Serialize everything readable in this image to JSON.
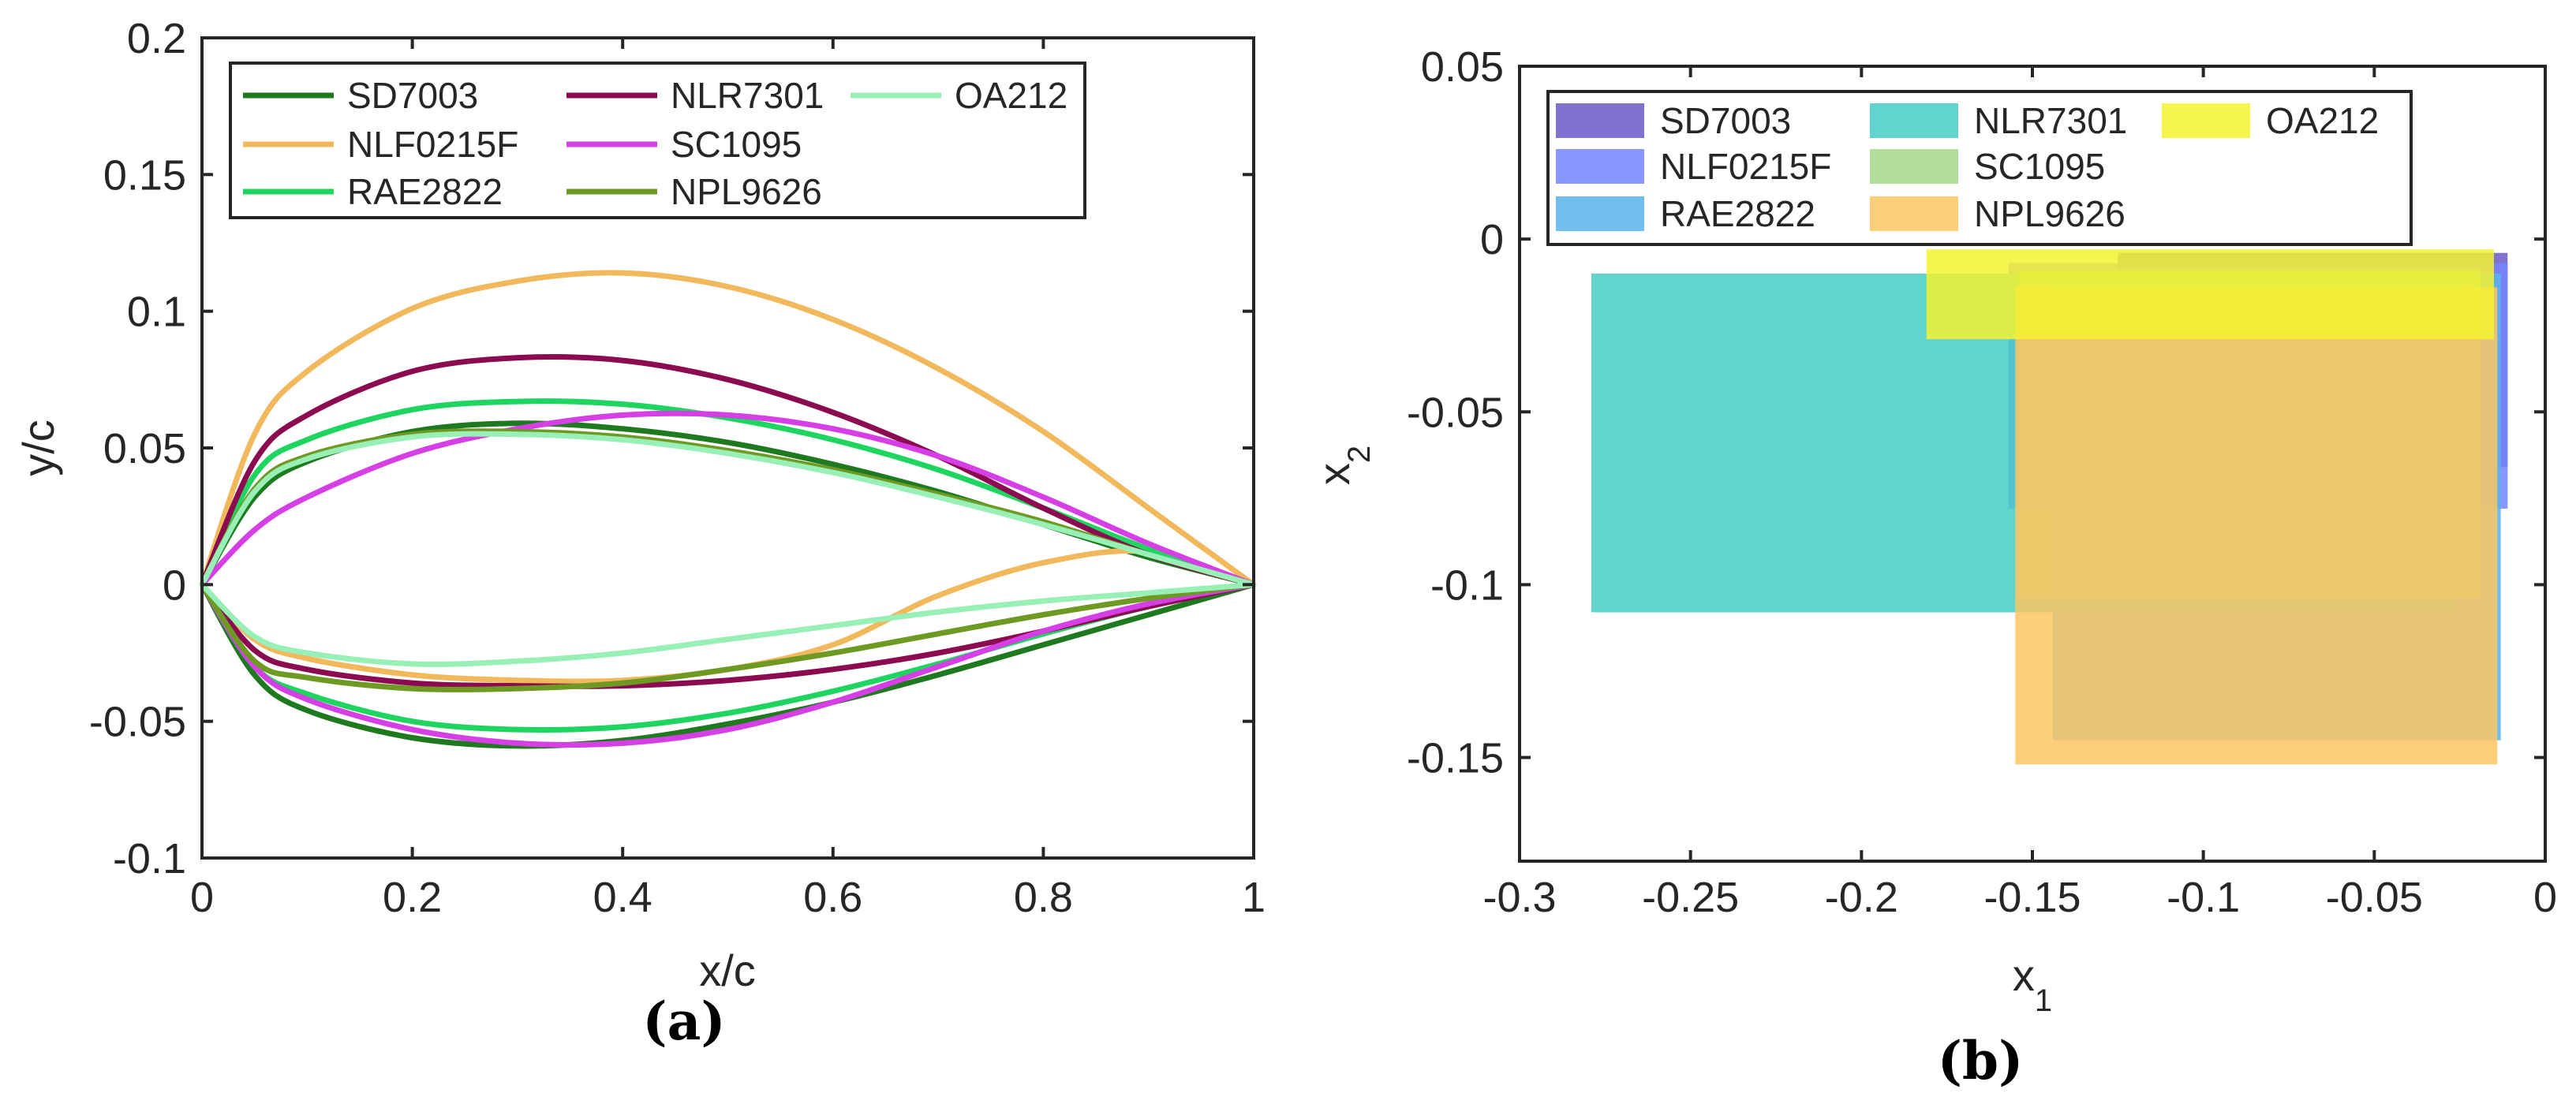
{
  "chart_data": [
    {
      "type": "line",
      "panel_label": "(a)",
      "xlabel": "x/c",
      "ylabel": "y/c",
      "xlim": [
        0,
        1
      ],
      "ylim": [
        -0.1,
        0.2
      ],
      "xticks": [
        0,
        0.2,
        0.4,
        0.6,
        0.8,
        1
      ],
      "yticks": [
        -0.1,
        -0.05,
        0,
        0.05,
        0.1,
        0.15,
        0.2
      ],
      "xtick_labels": [
        "0",
        "0.2",
        "0.4",
        "0.6",
        "0.8",
        "1"
      ],
      "ytick_labels": [
        "-0.1",
        "-0.05",
        "0",
        "0.05",
        "0.1",
        "0.15",
        "0.2"
      ],
      "grid": false,
      "legend_position": "top-left",
      "series": [
        {
          "name": "SD7003",
          "color": "#1f7a1f",
          "upper": [
            [
              0,
              0
            ],
            [
              0.05,
              0.032
            ],
            [
              0.1,
              0.045
            ],
            [
              0.2,
              0.056
            ],
            [
              0.3,
              0.059
            ],
            [
              0.4,
              0.057
            ],
            [
              0.5,
              0.052
            ],
            [
              0.6,
              0.044
            ],
            [
              0.7,
              0.034
            ],
            [
              0.8,
              0.022
            ],
            [
              0.9,
              0.01
            ],
            [
              1,
              0
            ]
          ],
          "lower": [
            [
              0,
              0
            ],
            [
              0.05,
              -0.033
            ],
            [
              0.1,
              -0.046
            ],
            [
              0.2,
              -0.056
            ],
            [
              0.3,
              -0.059
            ],
            [
              0.4,
              -0.057
            ],
            [
              0.5,
              -0.051
            ],
            [
              0.6,
              -0.043
            ],
            [
              0.7,
              -0.033
            ],
            [
              0.8,
              -0.022
            ],
            [
              0.9,
              -0.011
            ],
            [
              1,
              0
            ]
          ]
        },
        {
          "name": "NLF0215F",
          "color": "#f2b85c",
          "upper": [
            [
              0,
              0
            ],
            [
              0.05,
              0.055
            ],
            [
              0.1,
              0.078
            ],
            [
              0.2,
              0.101
            ],
            [
              0.3,
              0.111
            ],
            [
              0.4,
              0.114
            ],
            [
              0.5,
              0.109
            ],
            [
              0.6,
              0.097
            ],
            [
              0.7,
              0.079
            ],
            [
              0.8,
              0.056
            ],
            [
              0.9,
              0.028
            ],
            [
              1,
              0
            ]
          ],
          "lower": [
            [
              0,
              0
            ],
            [
              0.05,
              -0.02
            ],
            [
              0.1,
              -0.027
            ],
            [
              0.2,
              -0.033
            ],
            [
              0.3,
              -0.035
            ],
            [
              0.4,
              -0.035
            ],
            [
              0.5,
              -0.031
            ],
            [
              0.6,
              -0.022
            ],
            [
              0.7,
              -0.004
            ],
            [
              0.8,
              0.008
            ],
            [
              0.9,
              0.012
            ],
            [
              1,
              0
            ]
          ]
        },
        {
          "name": "RAE2822",
          "color": "#1ed65f",
          "upper": [
            [
              0,
              0
            ],
            [
              0.05,
              0.04
            ],
            [
              0.1,
              0.053
            ],
            [
              0.2,
              0.064
            ],
            [
              0.3,
              0.067
            ],
            [
              0.4,
              0.066
            ],
            [
              0.5,
              0.061
            ],
            [
              0.6,
              0.053
            ],
            [
              0.7,
              0.042
            ],
            [
              0.8,
              0.028
            ],
            [
              0.9,
              0.013
            ],
            [
              1,
              0
            ]
          ],
          "lower": [
            [
              0,
              0
            ],
            [
              0.05,
              -0.03
            ],
            [
              0.1,
              -0.04
            ],
            [
              0.2,
              -0.05
            ],
            [
              0.3,
              -0.053
            ],
            [
              0.4,
              -0.052
            ],
            [
              0.5,
              -0.047
            ],
            [
              0.6,
              -0.039
            ],
            [
              0.7,
              -0.029
            ],
            [
              0.8,
              -0.018
            ],
            [
              0.9,
              -0.008
            ],
            [
              1,
              0
            ]
          ]
        },
        {
          "name": "NLR7301",
          "color": "#8b0a50",
          "upper": [
            [
              0,
              0
            ],
            [
              0.05,
              0.045
            ],
            [
              0.1,
              0.062
            ],
            [
              0.2,
              0.078
            ],
            [
              0.3,
              0.083
            ],
            [
              0.4,
              0.082
            ],
            [
              0.5,
              0.075
            ],
            [
              0.6,
              0.063
            ],
            [
              0.7,
              0.047
            ],
            [
              0.8,
              0.028
            ],
            [
              0.9,
              0.011
            ],
            [
              1,
              0
            ]
          ],
          "lower": [
            [
              0,
              0
            ],
            [
              0.05,
              -0.024
            ],
            [
              0.1,
              -0.031
            ],
            [
              0.2,
              -0.036
            ],
            [
              0.3,
              -0.037
            ],
            [
              0.4,
              -0.037
            ],
            [
              0.5,
              -0.035
            ],
            [
              0.6,
              -0.031
            ],
            [
              0.7,
              -0.025
            ],
            [
              0.8,
              -0.017
            ],
            [
              0.9,
              -0.008
            ],
            [
              1,
              0
            ]
          ]
        },
        {
          "name": "SC1095",
          "color": "#d63ee6",
          "upper": [
            [
              0,
              0
            ],
            [
              0.05,
              0.02
            ],
            [
              0.1,
              0.032
            ],
            [
              0.2,
              0.048
            ],
            [
              0.3,
              0.057
            ],
            [
              0.4,
              0.062
            ],
            [
              0.5,
              0.062
            ],
            [
              0.6,
              0.057
            ],
            [
              0.7,
              0.047
            ],
            [
              0.8,
              0.032
            ],
            [
              0.9,
              0.015
            ],
            [
              1,
              0
            ]
          ],
          "lower": [
            [
              0,
              0
            ],
            [
              0.05,
              -0.03
            ],
            [
              0.1,
              -0.042
            ],
            [
              0.2,
              -0.053
            ],
            [
              0.3,
              -0.058
            ],
            [
              0.4,
              -0.058
            ],
            [
              0.5,
              -0.053
            ],
            [
              0.6,
              -0.043
            ],
            [
              0.7,
              -0.03
            ],
            [
              0.8,
              -0.017
            ],
            [
              0.9,
              -0.007
            ],
            [
              1,
              0
            ]
          ]
        },
        {
          "name": "NPL9626",
          "color": "#6e9a24",
          "upper": [
            [
              0,
              0
            ],
            [
              0.05,
              0.035
            ],
            [
              0.1,
              0.047
            ],
            [
              0.2,
              0.055
            ],
            [
              0.3,
              0.056
            ],
            [
              0.4,
              0.054
            ],
            [
              0.5,
              0.049
            ],
            [
              0.6,
              0.042
            ],
            [
              0.7,
              0.033
            ],
            [
              0.8,
              0.023
            ],
            [
              0.9,
              0.011
            ],
            [
              1,
              0
            ]
          ],
          "lower": [
            [
              0,
              0
            ],
            [
              0.05,
              -0.028
            ],
            [
              0.1,
              -0.034
            ],
            [
              0.2,
              -0.038
            ],
            [
              0.3,
              -0.038
            ],
            [
              0.4,
              -0.036
            ],
            [
              0.5,
              -0.031
            ],
            [
              0.6,
              -0.025
            ],
            [
              0.7,
              -0.018
            ],
            [
              0.8,
              -0.011
            ],
            [
              0.9,
              -0.005
            ],
            [
              1,
              0
            ]
          ]
        },
        {
          "name": "OA212",
          "color": "#98f0b6",
          "upper": [
            [
              0,
              0
            ],
            [
              0.05,
              0.034
            ],
            [
              0.1,
              0.046
            ],
            [
              0.2,
              0.054
            ],
            [
              0.3,
              0.055
            ],
            [
              0.4,
              0.053
            ],
            [
              0.5,
              0.048
            ],
            [
              0.6,
              0.041
            ],
            [
              0.7,
              0.032
            ],
            [
              0.8,
              0.022
            ],
            [
              0.9,
              0.011
            ],
            [
              1,
              0
            ]
          ],
          "lower": [
            [
              0,
              0
            ],
            [
              0.05,
              -0.019
            ],
            [
              0.1,
              -0.025
            ],
            [
              0.2,
              -0.029
            ],
            [
              0.3,
              -0.028
            ],
            [
              0.4,
              -0.025
            ],
            [
              0.5,
              -0.02
            ],
            [
              0.6,
              -0.015
            ],
            [
              0.7,
              -0.01
            ],
            [
              0.8,
              -0.006
            ],
            [
              0.9,
              -0.003
            ],
            [
              1,
              0
            ]
          ]
        }
      ]
    },
    {
      "type": "bar",
      "subtype": "range-rectangles",
      "panel_label": "(b)",
      "xlabel_main": "x",
      "xlabel_sub": "1",
      "ylabel_main": "x",
      "ylabel_sub": "2",
      "xlim": [
        -0.3,
        0
      ],
      "ylim": [
        -0.18,
        0.05
      ],
      "xticks": [
        -0.3,
        -0.25,
        -0.2,
        -0.15,
        -0.1,
        -0.05,
        0
      ],
      "yticks": [
        -0.15,
        -0.1,
        -0.05,
        0,
        0.05
      ],
      "xtick_labels": [
        "-0.3",
        "-0.25",
        "-0.2",
        "-0.15",
        "-0.1",
        "-0.05",
        "0"
      ],
      "ytick_labels": [
        "-0.15",
        "-0.1",
        "-0.05",
        "0",
        "0.05"
      ],
      "grid": false,
      "legend_position": "top",
      "series": [
        {
          "name": "SD7003",
          "color": "#6a5ac8",
          "x_range": [
            -0.125,
            -0.011
          ],
          "y_range": [
            -0.066,
            -0.004
          ]
        },
        {
          "name": "NLF0215F",
          "color": "#7585ff",
          "x_range": [
            -0.157,
            -0.011
          ],
          "y_range": [
            -0.078,
            -0.007
          ]
        },
        {
          "name": "RAE2822",
          "color": "#58b4ec",
          "x_range": [
            -0.144,
            -0.013
          ],
          "y_range": [
            -0.145,
            -0.01
          ]
        },
        {
          "name": "NLR7301",
          "color": "#45ccc5",
          "x_range": [
            -0.279,
            -0.026
          ],
          "y_range": [
            -0.108,
            -0.01
          ]
        },
        {
          "name": "SC1095",
          "color": "#a3d98a",
          "x_range": [
            -0.154,
            -0.019
          ],
          "y_range": [
            -0.104,
            -0.009
          ]
        },
        {
          "name": "NPL9626",
          "color": "#fcc663",
          "x_range": [
            -0.155,
            -0.014
          ],
          "y_range": [
            -0.152,
            -0.014
          ]
        },
        {
          "name": "OA212",
          "color": "#f4f230",
          "x_range": [
            -0.181,
            -0.015
          ],
          "y_range": [
            -0.029,
            -0.003
          ]
        }
      ]
    }
  ]
}
